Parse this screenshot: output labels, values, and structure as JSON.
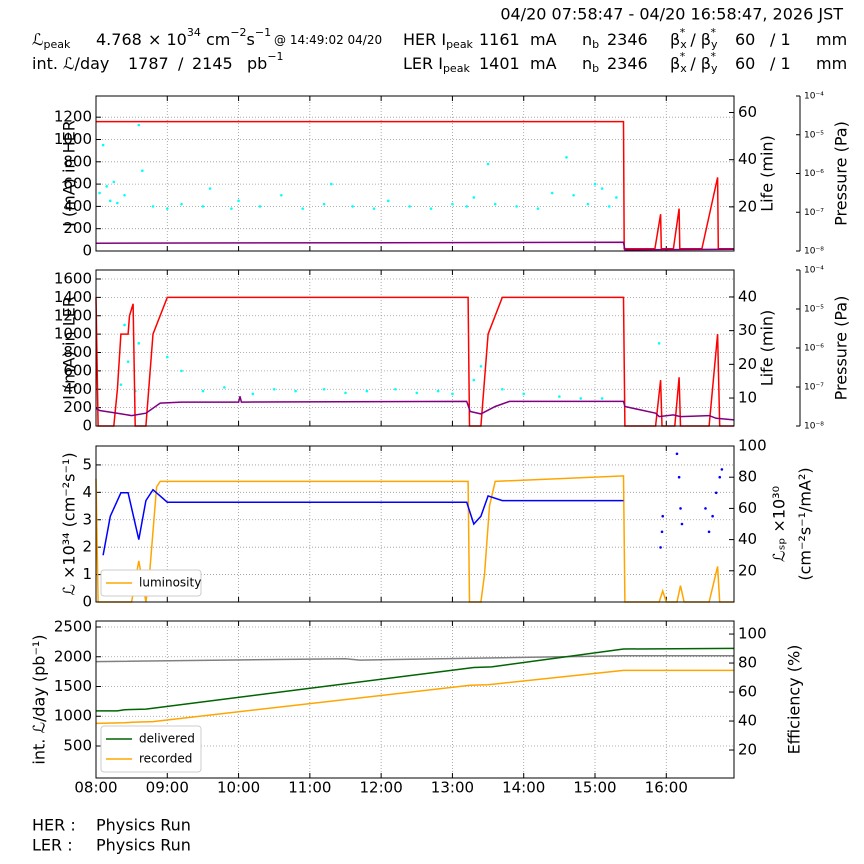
{
  "header": {
    "range": "04/20 07:58:47 - 04/20 16:58:47, 2026 JST",
    "rows": [
      [
        [
          {
            "t": "ℒ"
          },
          {
            "sub": "peak"
          }
        ],
        [
          {
            "t": "4.768"
          }
        ],
        [
          {
            "t": "× 10"
          },
          {
            "sup": "34"
          },
          {
            "t": " cm"
          },
          {
            "sup": "−2"
          },
          {
            "t": "s"
          },
          {
            "sup": "−1"
          }
        ],
        [
          {
            "small": "@ 14:49:02 04/20"
          }
        ],
        [
          {
            "t": "HER I"
          },
          {
            "sub": "peak"
          }
        ],
        [
          {
            "t": "1161"
          }
        ],
        [
          {
            "t": "mA"
          }
        ],
        [
          {
            "t": "n"
          },
          {
            "sub": "b"
          }
        ],
        [
          {
            "t": "2346"
          }
        ],
        [
          {
            "t": "β"
          },
          {
            "sub": "x"
          },
          {
            "sup": "*"
          },
          {
            "t": " / β"
          },
          {
            "sub": "y"
          },
          {
            "sup": "*"
          }
        ],
        [
          {
            "t": "60"
          }
        ],
        [
          {
            "t": "/ 1"
          }
        ],
        [
          {
            "t": "mm"
          }
        ]
      ],
      [
        [
          {
            "t": "int. ℒ/day"
          }
        ],
        [
          {
            "t": "1787"
          }
        ],
        [
          {
            "t": "/"
          }
        ],
        [
          {
            "t": "2145"
          }
        ],
        [
          {
            "t": "pb"
          },
          {
            "sup": "−1"
          }
        ],
        [
          {
            "t": "LER I"
          },
          {
            "sub": "peak"
          }
        ],
        [
          {
            "t": "1401"
          }
        ],
        [
          {
            "t": "mA"
          }
        ],
        [
          {
            "t": "n"
          },
          {
            "sub": "b"
          }
        ],
        [
          {
            "t": "2346"
          }
        ],
        [
          {
            "t": "β"
          },
          {
            "sub": "x"
          },
          {
            "sup": "*"
          },
          {
            "t": " / β"
          },
          {
            "sub": "y"
          },
          {
            "sup": "*"
          }
        ],
        [
          {
            "t": "60"
          }
        ],
        [
          {
            "t": "/ 1"
          }
        ],
        [
          {
            "t": "mm"
          }
        ]
      ]
    ]
  },
  "footer": [
    [
      "HER :",
      "Physics Run"
    ],
    [
      "LER :",
      "Physics Run"
    ]
  ],
  "chart_data": [
    {
      "type": "line",
      "ylabel": "I (mA) in HER",
      "y2label": "Life (min)",
      "y3label": "Pressure (Pa)",
      "grid": true,
      "xlim": [
        8.0,
        16.95
      ],
      "xticks": [
        8,
        9,
        10,
        11,
        12,
        13,
        14,
        15,
        16
      ],
      "ylim": [
        0,
        1390
      ],
      "yticks": [
        0,
        200,
        400,
        600,
        800,
        1000,
        1200
      ],
      "y2lim": [
        1.3,
        67
      ],
      "y2ticks": [
        20,
        40,
        60
      ],
      "y3lim": [
        1e-08,
        0.0001
      ],
      "y3log": true,
      "y3ticks": [
        {
          "value": 1e-08,
          "label": "10⁻⁸"
        },
        {
          "value": 1e-07,
          "label": "10⁻⁷"
        },
        {
          "value": 1e-06,
          "label": "10⁻⁶"
        },
        {
          "value": 1e-05,
          "label": "10⁻⁵"
        },
        {
          "value": 0.0001,
          "label": "10⁻⁴"
        }
      ],
      "series": [
        {
          "color": "#00ffff",
          "style": "dots",
          "x": [
            8.05,
            8.1,
            8.15,
            8.2,
            8.25,
            8.3,
            8.4,
            8.6,
            8.65,
            8.8,
            9.0,
            9.2,
            9.5,
            9.6,
            9.9,
            10.0,
            10.3,
            10.6,
            10.9,
            11.2,
            11.3,
            11.6,
            11.9,
            12.1,
            12.4,
            12.7,
            13.0,
            13.2,
            13.3,
            13.5,
            13.6,
            13.9,
            14.2,
            14.4,
            14.6,
            14.7,
            14.9,
            15.0,
            15.1,
            15.2,
            15.3
          ],
          "values": [
            520,
            950,
            580,
            450,
            620,
            430,
            500,
            1130,
            720,
            400,
            380,
            420,
            400,
            560,
            380,
            450,
            400,
            500,
            380,
            420,
            600,
            400,
            380,
            450,
            400,
            380,
            420,
            400,
            480,
            780,
            420,
            400,
            380,
            520,
            840,
            500,
            420,
            600,
            560,
            400,
            480
          ]
        },
        {
          "color": "#ff0000",
          "x": [
            8.0,
            15.4,
            15.41,
            15.84,
            15.92,
            15.93,
            16.1,
            16.18,
            16.19,
            16.5,
            16.72,
            16.73,
            16.95
          ],
          "values": [
            1160,
            1160,
            20,
            20,
            330,
            20,
            20,
            380,
            20,
            20,
            660,
            20,
            20
          ]
        },
        {
          "color": "#800080",
          "axis": "y2",
          "x": [
            8.0,
            15.4,
            15.42,
            16.95
          ],
          "values": [
            4.6,
            5.0,
            1.8,
            2.0
          ]
        }
      ]
    },
    {
      "type": "line",
      "ylabel": "I (mA) in LER",
      "y2label": "Life (min)",
      "y3label": "Pressure (Pa)",
      "grid": true,
      "xlim": [
        8.0,
        16.95
      ],
      "xticks": [
        8,
        9,
        10,
        11,
        12,
        13,
        14,
        15,
        16
      ],
      "ylim": [
        0,
        1698
      ],
      "yticks": [
        0,
        200,
        400,
        600,
        800,
        1000,
        1200,
        1400,
        1600
      ],
      "y2lim": [
        1.7,
        48
      ],
      "y2ticks": [
        10,
        20,
        30,
        40
      ],
      "y3lim": [
        1e-08,
        0.0001
      ],
      "y3log": true,
      "y3ticks": [
        {
          "value": 1e-08,
          "label": "10⁻⁸"
        },
        {
          "value": 1e-07,
          "label": "10⁻⁷"
        },
        {
          "value": 1e-06,
          "label": "10⁻⁶"
        },
        {
          "value": 1e-05,
          "label": "10⁻⁵"
        },
        {
          "value": 0.0001,
          "label": "10⁻⁴"
        }
      ],
      "series": [
        {
          "color": "#00ffff",
          "style": "dots",
          "x": [
            8.35,
            8.4,
            8.45,
            8.55,
            8.6,
            9.0,
            9.2,
            9.5,
            9.8,
            10.2,
            10.5,
            10.8,
            11.2,
            11.5,
            11.8,
            12.2,
            12.5,
            12.8,
            13.0,
            13.3,
            13.4,
            13.7,
            14.0,
            14.5,
            14.8,
            15.1,
            15.9
          ],
          "values": [
            450,
            1100,
            700,
            380,
            900,
            750,
            600,
            380,
            420,
            350,
            400,
            380,
            400,
            360,
            380,
            400,
            360,
            380,
            350,
            500,
            650,
            400,
            350,
            320,
            300,
            300,
            900
          ]
        },
        {
          "color": "#ff0000",
          "x": [
            8.0,
            8.03,
            8.25,
            8.3,
            8.35,
            8.45,
            8.47,
            8.52,
            8.55,
            8.7,
            8.8,
            9.0,
            13.22,
            13.24,
            13.4,
            13.5,
            13.7,
            15.4,
            15.42,
            15.85,
            15.92,
            15.94,
            16.12,
            16.18,
            16.2,
            16.6,
            16.72,
            16.75,
            16.95
          ],
          "values": [
            1400,
            0,
            0,
            400,
            1000,
            1000,
            1200,
            1330,
            0,
            0,
            1000,
            1400,
            1400,
            0,
            0,
            1000,
            1400,
            1400,
            0,
            0,
            500,
            0,
            0,
            530,
            0,
            0,
            1000,
            0,
            0
          ]
        },
        {
          "color": "#800080",
          "axis": "y2",
          "x": [
            8.0,
            8.05,
            8.3,
            8.5,
            8.7,
            8.9,
            9.2,
            10.0,
            10.02,
            10.04,
            13.2,
            13.25,
            13.4,
            13.6,
            13.8,
            15.4,
            15.42,
            15.85,
            15.9,
            16.1,
            16.2,
            16.6,
            16.7,
            16.95
          ],
          "values": [
            7,
            6.3,
            5.5,
            4.8,
            5.5,
            8.5,
            8.8,
            8.8,
            10.5,
            8.8,
            9,
            6,
            5.3,
            7.5,
            9,
            9,
            7.5,
            5.5,
            4.5,
            5,
            4.5,
            4.8,
            4,
            3.5
          ]
        }
      ]
    },
    {
      "type": "line",
      "ylabel": "ℒ ×10³⁴ (cm⁻²s⁻¹)",
      "y2label": [
        "ℒₛₚ ×10³⁰",
        "(cm⁻²s⁻¹/mA²)"
      ],
      "grid": true,
      "legend": "lower left",
      "xlim": [
        8.0,
        16.95
      ],
      "xticks": [
        8,
        9,
        10,
        11,
        12,
        13,
        14,
        15,
        16
      ],
      "ylim": [
        0,
        5.69
      ],
      "yticks": [
        0,
        1,
        2,
        3,
        4,
        5
      ],
      "y2lim": [
        0,
        100
      ],
      "y2ticks": [
        20,
        40,
        60,
        80,
        100
      ],
      "series": [
        {
          "name": "luminosity",
          "color": "#ffa500",
          "x": [
            8.0,
            8.03,
            8.5,
            8.6,
            8.7,
            8.75,
            8.85,
            8.9,
            13.22,
            13.24,
            13.4,
            13.45,
            13.52,
            13.6,
            15.4,
            15.42,
            15.9,
            15.95,
            16.0,
            16.15,
            16.2,
            16.25,
            16.6,
            16.72,
            16.75,
            16.95
          ],
          "values": [
            4.5,
            0,
            0,
            1.5,
            0,
            1,
            4.2,
            4.4,
            4.4,
            0,
            0,
            1.0,
            3.5,
            4.4,
            4.6,
            0,
            0,
            0.4,
            0,
            0,
            0.6,
            0,
            0,
            1.3,
            0,
            0
          ]
        },
        {
          "color": "#0000ff",
          "axis": "y2",
          "x": [
            8.1,
            8.2,
            8.35,
            8.45,
            8.6,
            8.7,
            8.8,
            9.0,
            13.2,
            13.3,
            13.4,
            13.5,
            13.7,
            15.4
          ],
          "values": [
            30,
            55,
            70,
            70,
            40,
            65,
            72,
            64,
            64,
            50,
            55,
            68,
            65,
            65
          ]
        },
        {
          "color": "#0000ff",
          "axis": "y2",
          "style": "dots",
          "x": [
            15.92,
            15.94,
            15.95,
            16.15,
            16.18,
            16.2,
            16.22,
            16.55,
            16.6,
            16.65,
            16.7,
            16.75,
            16.78
          ],
          "values": [
            35,
            45,
            55,
            95,
            80,
            60,
            50,
            60,
            45,
            55,
            70,
            80,
            85
          ]
        }
      ]
    },
    {
      "type": "line",
      "ylabel": "int. ℒ/day (pb⁻¹)",
      "y2label": "Efficiency (%)",
      "grid": true,
      "legend": "lower left",
      "xlim": [
        8.0,
        16.95
      ],
      "xticks": [
        {
          "value": 8,
          "label": "08:00"
        },
        {
          "value": 9,
          "label": "09:00"
        },
        {
          "value": 10,
          "label": "10:00"
        },
        {
          "value": 11,
          "label": "11:00"
        },
        {
          "value": 12,
          "label": "12:00"
        },
        {
          "value": 13,
          "label": "13:00"
        },
        {
          "value": 14,
          "label": "14:00"
        },
        {
          "value": 15,
          "label": "15:00"
        },
        {
          "value": 16,
          "label": "16:00"
        }
      ],
      "ylim": [
        -38,
        2601
      ],
      "yticks": [
        500,
        1000,
        1500,
        2000,
        2500
      ],
      "y2lim": [
        0.7,
        109
      ],
      "y2ticks": [
        20,
        40,
        60,
        80,
        100
      ],
      "series": [
        {
          "color": "#808080",
          "axis": "y2",
          "x": [
            8.0,
            11.5,
            11.7,
            15.4,
            16.95
          ],
          "values": [
            81,
            83,
            82,
            85,
            85
          ]
        },
        {
          "name": "delivered",
          "color": "#006400",
          "x": [
            8.0,
            8.3,
            8.4,
            8.7,
            13.3,
            13.55,
            15.4,
            16.95
          ],
          "values": [
            1090,
            1090,
            1110,
            1120,
            1820,
            1830,
            2130,
            2140
          ]
        },
        {
          "name": "recorded",
          "color": "#ffa500",
          "x": [
            8.0,
            8.4,
            8.5,
            8.8,
            13.25,
            13.5,
            15.4,
            16.95
          ],
          "values": [
            880,
            890,
            900,
            910,
            1520,
            1530,
            1770,
            1770
          ]
        }
      ]
    }
  ]
}
